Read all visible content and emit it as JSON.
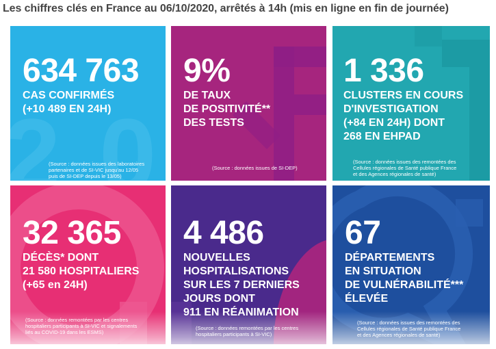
{
  "headline": "Les chiffres clés en France au 06/10/2020, arrêtés à 14h (mis en ligne en fin de journée)",
  "tiles": [
    {
      "value": "634 763",
      "label_lines": [
        "CAS CONFIRMÉS",
        "(+10 489 EN 24H)"
      ],
      "source_lines": [
        "(Source : données issues des laboratoires",
        "partenaires et de SI-VIC jusqu'au 12/05",
        "puis de SI-DEP depuis le 13/05)"
      ],
      "color": "#2ab2e6"
    },
    {
      "value": "9%",
      "label_lines": [
        "DE TAUX",
        "DE POSITIVITÉ**",
        "DES TESTS"
      ],
      "source_lines": [
        "(Source : données issues de SI-DEP)"
      ],
      "color": "#a6257e"
    },
    {
      "value": "1 336",
      "label_lines": [
        "CLUSTERS EN COURS",
        "D'INVESTIGATION",
        "(+84 EN 24H) DONT",
        "268 EN EHPAD"
      ],
      "source_lines": [
        "(Source : données issues des remontées des",
        "Cellules régionales de Santé publique France",
        "et des Agences régionales de santé)"
      ],
      "color": "#22a7b0"
    },
    {
      "value": "32 365",
      "label_lines": [
        "DÉCÈS* DONT",
        "21 580 HOSPITALIERS",
        "(+65 en 24H)"
      ],
      "source_lines": [
        "(Source : données remontées par les centres",
        "hospitaliers participants à SI-VIC et signalements",
        "liés au COVID-19 dans les ESMS)"
      ],
      "color": "#e72f74"
    },
    {
      "value": "4 486",
      "label_lines": [
        "NOUVELLES",
        "HOSPITALISATIONS",
        "SUR LES 7 DERNIERS",
        "JOURS DONT",
        "911 EN RÉANIMATION"
      ],
      "source_lines": [
        "(Source : données remontées par les centres",
        "hospitaliers participants à SI-VIC)"
      ],
      "color": "#4a2a8c"
    },
    {
      "value": "67",
      "label_lines": [
        "DÉPARTEMENTS",
        "EN SITUATION",
        "DE VULNÉRABILITÉ***",
        "ÉLEVÉE"
      ],
      "source_lines": [
        "(Source : données issues des remontées des",
        "Cellules régionales de Santé publique France",
        "et des Agences régionales de santé)"
      ],
      "color": "#1e4f9e"
    }
  ]
}
